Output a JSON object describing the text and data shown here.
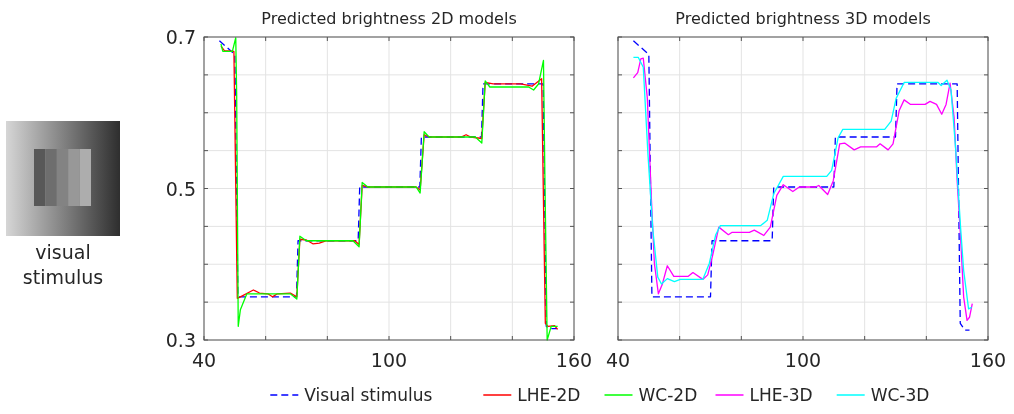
{
  "chart_data": [
    {
      "type": "line",
      "title": "Predicted brightness 2D models",
      "annotations": [
        "visual stimulus"
      ],
      "xlim": [
        40,
        160
      ],
      "ylim": [
        0.3,
        0.7
      ],
      "xticks": [
        40,
        {
          "value": 60,
          "label": null
        },
        {
          "value": 80,
          "label": null
        },
        100,
        {
          "value": 120,
          "label": null
        },
        {
          "value": 140,
          "label": null
        },
        160
      ],
      "yticks": [
        0.3,
        {
          "value": 0.35,
          "label": null
        },
        {
          "value": 0.4,
          "label": null
        },
        {
          "value": 0.45,
          "label": null
        },
        0.5,
        {
          "value": 0.55,
          "label": null
        },
        {
          "value": 0.6,
          "label": null
        },
        {
          "value": 0.65,
          "label": null
        },
        0.7
      ],
      "grid": true,
      "legend": "bottom",
      "series": [
        {
          "name": "Visual stimulus",
          "color": "#0000ff",
          "line_style": "dashed",
          "x": [
            45,
            50,
            51,
            70,
            70.5,
            90,
            90.5,
            110,
            110.5,
            130,
            130.5,
            150,
            151,
            152.5,
            154.5
          ],
          "values": [
            0.695,
            0.677,
            0.357,
            0.357,
            0.431,
            0.431,
            0.502,
            0.502,
            0.568,
            0.568,
            0.638,
            0.638,
            0.318,
            0.315,
            0.315
          ]
        },
        {
          "name": "LHE-2D",
          "color": "#ff0000",
          "x": [
            45.5,
            46.6,
            49.7,
            50.8,
            51.8,
            56,
            58,
            60.7,
            62.2,
            63.8,
            68,
            70.1,
            71.1,
            73.2,
            75.3,
            77.4,
            79.5,
            88.9,
            90.3,
            91.3,
            93.1,
            108.8,
            110.1,
            111.4,
            113,
            123.4,
            125,
            126.5,
            130.1,
            131.2,
            133.8,
            142.7,
            146.4,
            149.5,
            150.7,
            151.6,
            153.7,
            154.7
          ],
          "values": [
            0.688,
            0.682,
            0.681,
            0.355,
            0.357,
            0.366,
            0.362,
            0.361,
            0.357,
            0.361,
            0.362,
            0.357,
            0.433,
            0.432,
            0.427,
            0.428,
            0.431,
            0.431,
            0.426,
            0.504,
            0.502,
            0.502,
            0.498,
            0.571,
            0.568,
            0.568,
            0.571,
            0.568,
            0.566,
            0.64,
            0.638,
            0.638,
            0.635,
            0.645,
            0.322,
            0.318,
            0.319,
            0.314
          ]
        },
        {
          "name": "WC-2D",
          "color": "#00ff00",
          "x": [
            45.5,
            46.1,
            49.2,
            50.3,
            50.6,
            51.1,
            51.8,
            53.9,
            68,
            70.1,
            71.1,
            73.2,
            88.3,
            90.3,
            91.3,
            93.1,
            108.8,
            110.1,
            111.4,
            113,
            128,
            130.1,
            131.2,
            132.7,
            145.3,
            146.9,
            148.5,
            150.1,
            150.6,
            151.3,
            152.6,
            154.7
          ],
          "values": [
            0.691,
            0.681,
            0.681,
            0.699,
            0.622,
            0.318,
            0.34,
            0.361,
            0.361,
            0.354,
            0.437,
            0.431,
            0.431,
            0.423,
            0.508,
            0.502,
            0.502,
            0.494,
            0.575,
            0.568,
            0.568,
            0.56,
            0.642,
            0.634,
            0.634,
            0.63,
            0.638,
            0.669,
            0.502,
            0.3,
            0.318,
            0.318
          ]
        }
      ]
    },
    {
      "type": "line",
      "title": "Predicted brightness 3D models",
      "xlim": [
        40,
        160
      ],
      "ylim": [
        0.3,
        0.7
      ],
      "xticks": [
        40,
        {
          "value": 60,
          "label": null
        },
        {
          "value": 80,
          "label": null
        },
        100,
        {
          "value": 120,
          "label": null
        },
        {
          "value": 140,
          "label": null
        },
        160
      ],
      "yticks": [
        0.3,
        {
          "value": 0.35,
          "label": null
        },
        {
          "value": 0.4,
          "label": null
        },
        {
          "value": 0.45,
          "label": null
        },
        0.5,
        {
          "value": 0.55,
          "label": null
        },
        {
          "value": 0.6,
          "label": null
        },
        {
          "value": 0.65,
          "label": null
        },
        0.7
      ],
      "tick_labels": "x",
      "grid": true,
      "legend": "bottom",
      "series": [
        {
          "name": "Visual stimulus",
          "color": "#0000ff",
          "line_style": "dashed",
          "x": [
            45,
            50,
            51,
            70,
            70.5,
            90,
            90.5,
            110,
            110.5,
            130,
            130.5,
            150,
            151,
            152.5,
            154
          ],
          "values": [
            0.695,
            0.677,
            0.357,
            0.357,
            0.431,
            0.431,
            0.502,
            0.502,
            0.568,
            0.568,
            0.638,
            0.638,
            0.322,
            0.313,
            0.313
          ]
        },
        {
          "name": "LHE-3D",
          "color": "#ff00ff",
          "x": [
            45,
            46.4,
            47.4,
            48.2,
            49.5,
            50.8,
            51.8,
            53.1,
            54.4,
            56,
            58.1,
            62.8,
            64.3,
            67.5,
            69.1,
            70.6,
            72.7,
            75.8,
            76.9,
            82.6,
            84.2,
            87.3,
            89.4,
            91.5,
            93.6,
            96.7,
            98.8,
            104,
            105.1,
            108,
            109.8,
            111.9,
            113.5,
            116.6,
            118.7,
            123.9,
            125,
            127.6,
            129.2,
            131.2,
            132.8,
            134.9,
            139.6,
            141.2,
            143.3,
            145,
            146.4,
            147.7,
            149,
            150,
            151.1,
            152.1,
            153.2,
            154,
            154.9
          ],
          "values": [
            0.646,
            0.653,
            0.671,
            0.672,
            0.62,
            0.489,
            0.401,
            0.361,
            0.374,
            0.398,
            0.384,
            0.384,
            0.389,
            0.38,
            0.386,
            0.41,
            0.449,
            0.439,
            0.442,
            0.442,
            0.445,
            0.438,
            0.449,
            0.491,
            0.505,
            0.496,
            0.502,
            0.502,
            0.504,
            0.492,
            0.51,
            0.559,
            0.56,
            0.551,
            0.555,
            0.555,
            0.559,
            0.551,
            0.559,
            0.603,
            0.617,
            0.611,
            0.611,
            0.615,
            0.611,
            0.598,
            0.611,
            0.639,
            0.594,
            0.51,
            0.436,
            0.357,
            0.326,
            0.33,
            0.348
          ]
        },
        {
          "name": "WC-3D",
          "color": "#00ffff",
          "x": [
            45,
            46.6,
            48.2,
            49.7,
            51.3,
            52.9,
            54.1,
            56,
            58.3,
            60.2,
            67.5,
            69.6,
            71.7,
            73.2,
            86.3,
            88.4,
            90.5,
            93.6,
            107.7,
            109.3,
            111.4,
            112.9,
            126.5,
            128.6,
            130.2,
            132.8,
            143.8,
            144.8,
            146.7,
            148,
            149.5,
            151.1,
            152.1,
            153.7,
            154.7
          ],
          "values": [
            0.673,
            0.673,
            0.66,
            0.546,
            0.445,
            0.383,
            0.374,
            0.381,
            0.377,
            0.38,
            0.38,
            0.401,
            0.439,
            0.451,
            0.451,
            0.458,
            0.493,
            0.516,
            0.516,
            0.524,
            0.567,
            0.578,
            0.578,
            0.589,
            0.619,
            0.64,
            0.64,
            0.636,
            0.643,
            0.63,
            0.553,
            0.449,
            0.392,
            0.341,
            0.343
          ]
        }
      ]
    }
  ]
}
